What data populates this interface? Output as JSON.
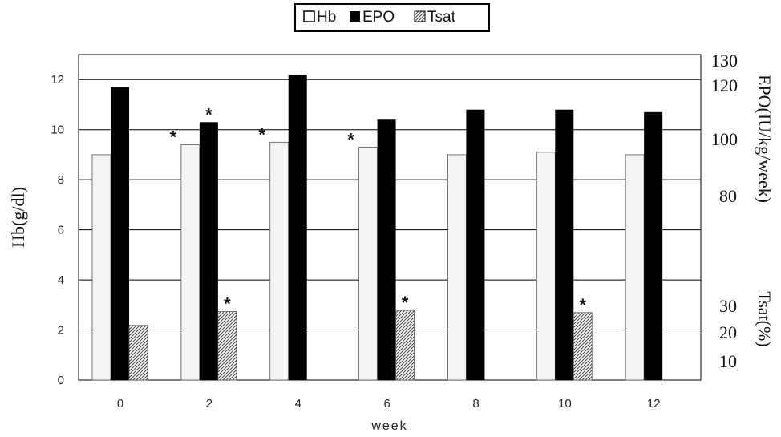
{
  "chart_data": {
    "type": "bar",
    "xlabel": "week",
    "categories": [
      "0",
      "2",
      "4",
      "6",
      "8",
      "10",
      "12"
    ],
    "series": [
      {
        "name": "Hb",
        "axis": "left",
        "values": [
          9.0,
          9.4,
          9.5,
          9.3,
          9.0,
          9.1,
          9.0
        ],
        "significant": [
          false,
          true,
          true,
          true,
          false,
          false,
          false
        ],
        "color": "#f0f0f0"
      },
      {
        "name": "EPO",
        "axis": "right",
        "values": [
          117,
          103,
          122,
          104,
          108,
          108,
          107
        ],
        "significant": [
          false,
          true,
          false,
          false,
          false,
          false,
          false
        ],
        "color": "#000000"
      },
      {
        "name": "Tsat",
        "axis": "right",
        "values": [
          24.4,
          28.7,
          null,
          29.1,
          null,
          28.4,
          null
        ],
        "significant": [
          false,
          true,
          false,
          true,
          false,
          true,
          false
        ],
        "color": "#8a8a8a"
      }
    ],
    "left_axis": {
      "label": "Hb(g/dl)",
      "ylim": [
        0,
        13
      ],
      "ticks": [
        "0",
        "2",
        "4",
        "6",
        "8",
        "10",
        "12"
      ]
    },
    "right_axis": {
      "epo_label": "EPO(IU/kg/week)",
      "epo_ticks": [
        "80",
        "100",
        "120",
        "130"
      ],
      "tsat_label": "Tsat(%)",
      "tsat_ticks": [
        "10",
        "20",
        "30"
      ]
    },
    "significance_marker": "*",
    "legend": {
      "position": "top-center",
      "entries": [
        "Hb",
        "EPO",
        "Tsat"
      ]
    },
    "grid": true
  }
}
